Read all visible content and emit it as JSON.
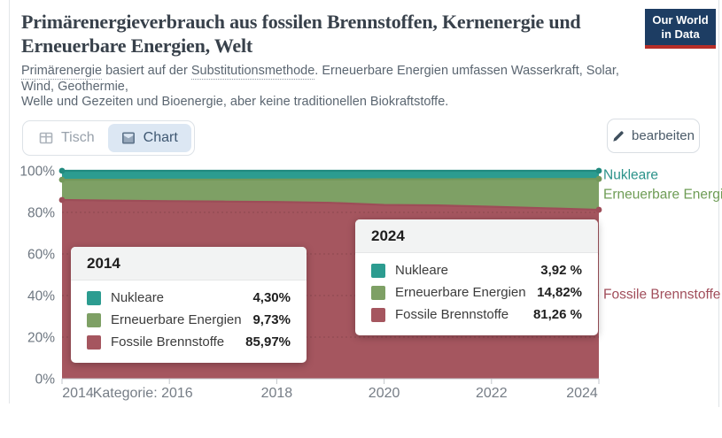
{
  "header": {
    "title_line1": "Primärenergieverbrauch aus fossilen Brennstoffen, Kernenergie und",
    "title_line2": "Erneuerbare Energien, Welt",
    "subtitle": {
      "seg1": "Primärenergie",
      "seg2": " basiert auf der ",
      "seg3": "Substitutionsmethode",
      "seg4": ". Erneuerbare Energien umfassen Wasserkraft, Solar, Wind, Geothermie,",
      "line2": "Welle und Gezeiten und Bioenergie, aber keine traditionellen Biokraftstoffe."
    },
    "logo": {
      "line1": "Our World",
      "line2": "in Data",
      "bg_color": "#1d3d63",
      "bar_color": "#b62e28"
    }
  },
  "toolbar": {
    "tab_table_label": "Tisch",
    "tab_chart_label": "Chart",
    "edit_label": "bearbeiten"
  },
  "tooltip_2014": {
    "year": "2014",
    "rows": [
      {
        "label": "Nukleare",
        "value": "4,30%",
        "color": "#2c9c90"
      },
      {
        "label": "Erneuerbare Energien",
        "value": "9,73%",
        "color": "#7ea065"
      },
      {
        "label": "Fossile Brennstoffe",
        "value": "85,97%",
        "color": "#a5565f"
      }
    ]
  },
  "tooltip_2024": {
    "year": "2024",
    "rows": [
      {
        "label": "Nukleare",
        "value": "3,92 %",
        "color": "#2c9c90"
      },
      {
        "label": "Erneuerbare Energien",
        "value": "14,82%",
        "color": "#7ea065"
      },
      {
        "label": "Fossile Brennstoffe",
        "value": "81,26 %",
        "color": "#a5565f"
      }
    ]
  },
  "chart_data": {
    "type": "area",
    "stacking": "percent",
    "title": "Primärenergieverbrauch aus fossilen Brennstoffen, Kernenergie und Erneuerbare Energien, Welt",
    "x": [
      2014,
      2015,
      2016,
      2017,
      2018,
      2019,
      2020,
      2021,
      2022,
      2023,
      2024
    ],
    "x_tick_years": [
      2014,
      2016,
      2018,
      2020,
      2022,
      2024
    ],
    "x_tick_labels": [
      "2014",
      "Kategorie: 2016",
      "2018",
      "2020",
      "2022",
      "2024"
    ],
    "y_ticks": [
      0,
      20,
      40,
      60,
      80,
      100
    ],
    "y_tick_labels": [
      "0%",
      "20%",
      "40%",
      "60%",
      "80%",
      "100%"
    ],
    "ylim": [
      0,
      100
    ],
    "grid": "dashed-horizontal",
    "legend_position": "right-end-labels",
    "series": [
      {
        "name": "Fossile Brennstoffe",
        "end_label": "Fossile Brennstoffe",
        "fill": "#a5565f",
        "stroke": "#9d4d58",
        "label_color": "#a14e5b",
        "values": [
          85.97,
          85.65,
          85.4,
          85.2,
          85.0,
          84.6,
          83.6,
          83.35,
          82.7,
          82.0,
          81.26
        ]
      },
      {
        "name": "Erneuerbare Energien",
        "end_label": "Erneuerbare Energie",
        "fill": "#7ea065",
        "stroke": "#73985a",
        "label_color": "#6e9c55",
        "values": [
          9.73,
          10.05,
          10.33,
          10.58,
          10.8,
          11.22,
          12.35,
          12.57,
          13.3,
          14.05,
          14.82
        ]
      },
      {
        "name": "Nukleare",
        "end_label": "Nukleare",
        "fill": "#2c9c90",
        "stroke": "#218a7f",
        "label_color": "#2a9289",
        "values": [
          4.3,
          4.3,
          4.27,
          4.22,
          4.2,
          4.18,
          4.05,
          4.08,
          4.0,
          3.95,
          3.92
        ]
      }
    ]
  }
}
